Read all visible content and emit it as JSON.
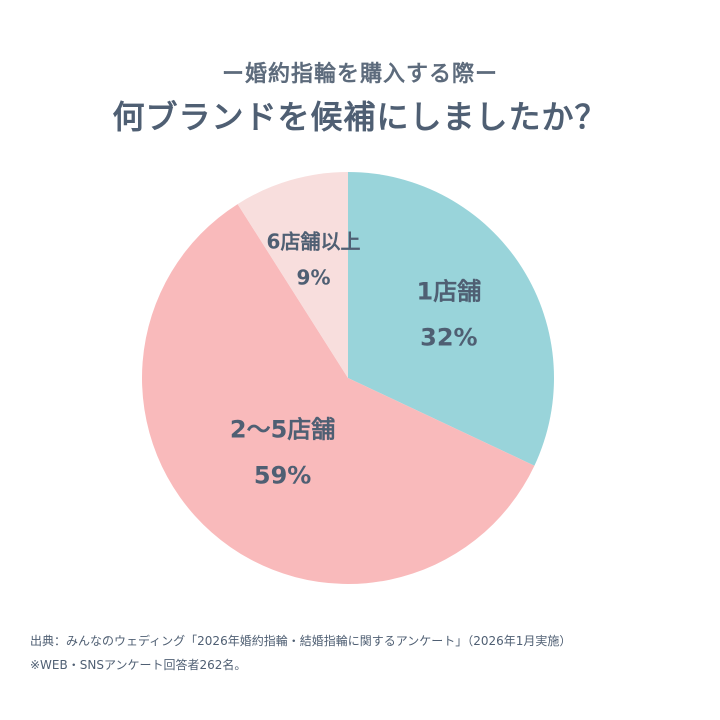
{
  "header": {
    "subtitle": "ー婚約指輪を購入する際ー",
    "title": "何ブランドを候補にしましたか？"
  },
  "chart_data": {
    "type": "pie",
    "title": "何ブランドを候補にしましたか？",
    "subtitle": "ー婚約指輪を購入する際ー",
    "slices": [
      {
        "label": "1店舗",
        "value": 32,
        "value_label": "32%",
        "color": "#99d4da"
      },
      {
        "label": "2〜5店舗",
        "value": 59,
        "value_label": "59%",
        "color": "#f9babb"
      },
      {
        "label": "6店舗以上",
        "value": 9,
        "value_label": "9%",
        "color": "#f8dedd"
      }
    ],
    "start_angle": "12 o'clock",
    "direction": "clockwise"
  },
  "footer": {
    "source": "出典：みんなのウェディング「2026年婚約指輪・結婚指輪に関するアンケート」（2026年1月実施）",
    "note": "※WEB・SNSアンケート回答者262名。"
  }
}
